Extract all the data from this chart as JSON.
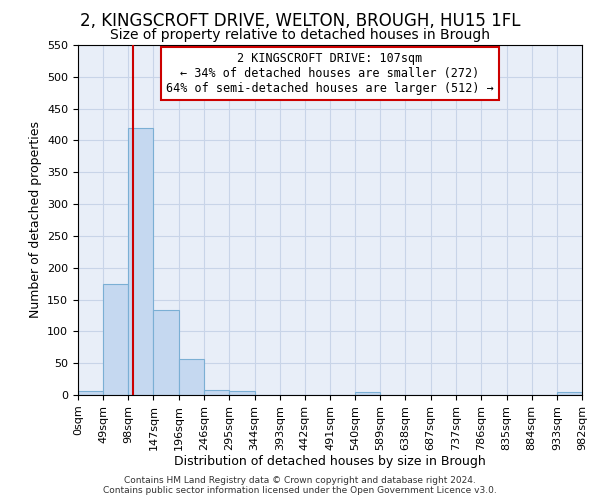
{
  "title": "2, KINGSCROFT DRIVE, WELTON, BROUGH, HU15 1FL",
  "subtitle": "Size of property relative to detached houses in Brough",
  "xlabel": "Distribution of detached houses by size in Brough",
  "ylabel": "Number of detached properties",
  "bin_edges": [
    0,
    49,
    98,
    147,
    196,
    246,
    295,
    344,
    393,
    442,
    491,
    540,
    589,
    638,
    687,
    737,
    786,
    835,
    884,
    933,
    982
  ],
  "bar_labels": [
    "0sqm",
    "49sqm",
    "98sqm",
    "147sqm",
    "196sqm",
    "246sqm",
    "295sqm",
    "344sqm",
    "393sqm",
    "442sqm",
    "491sqm",
    "540sqm",
    "589sqm",
    "638sqm",
    "687sqm",
    "737sqm",
    "786sqm",
    "835sqm",
    "884sqm",
    "933sqm",
    "982sqm"
  ],
  "bar_heights": [
    7,
    175,
    420,
    133,
    57,
    8,
    6,
    0,
    0,
    0,
    0,
    5,
    0,
    0,
    0,
    0,
    0,
    0,
    0,
    5
  ],
  "bar_color": "#c5d8f0",
  "bar_edge_color": "#7bafd4",
  "property_size": 107,
  "vline_color": "#cc0000",
  "annotation_line1": "2 KINGSCROFT DRIVE: 107sqm",
  "annotation_line2": "← 34% of detached houses are smaller (272)",
  "annotation_line3": "64% of semi-detached houses are larger (512) →",
  "annotation_box_color": "#ffffff",
  "annotation_box_edge_color": "#cc0000",
  "ylim": [
    0,
    550
  ],
  "yticks": [
    0,
    50,
    100,
    150,
    200,
    250,
    300,
    350,
    400,
    450,
    500,
    550
  ],
  "grid_color": "#c8d4e8",
  "background_color": "#e8eef8",
  "title_fontsize": 12,
  "subtitle_fontsize": 10,
  "tick_fontsize": 8,
  "axis_label_fontsize": 9,
  "footer_text": "Contains HM Land Registry data © Crown copyright and database right 2024.\nContains public sector information licensed under the Open Government Licence v3.0."
}
